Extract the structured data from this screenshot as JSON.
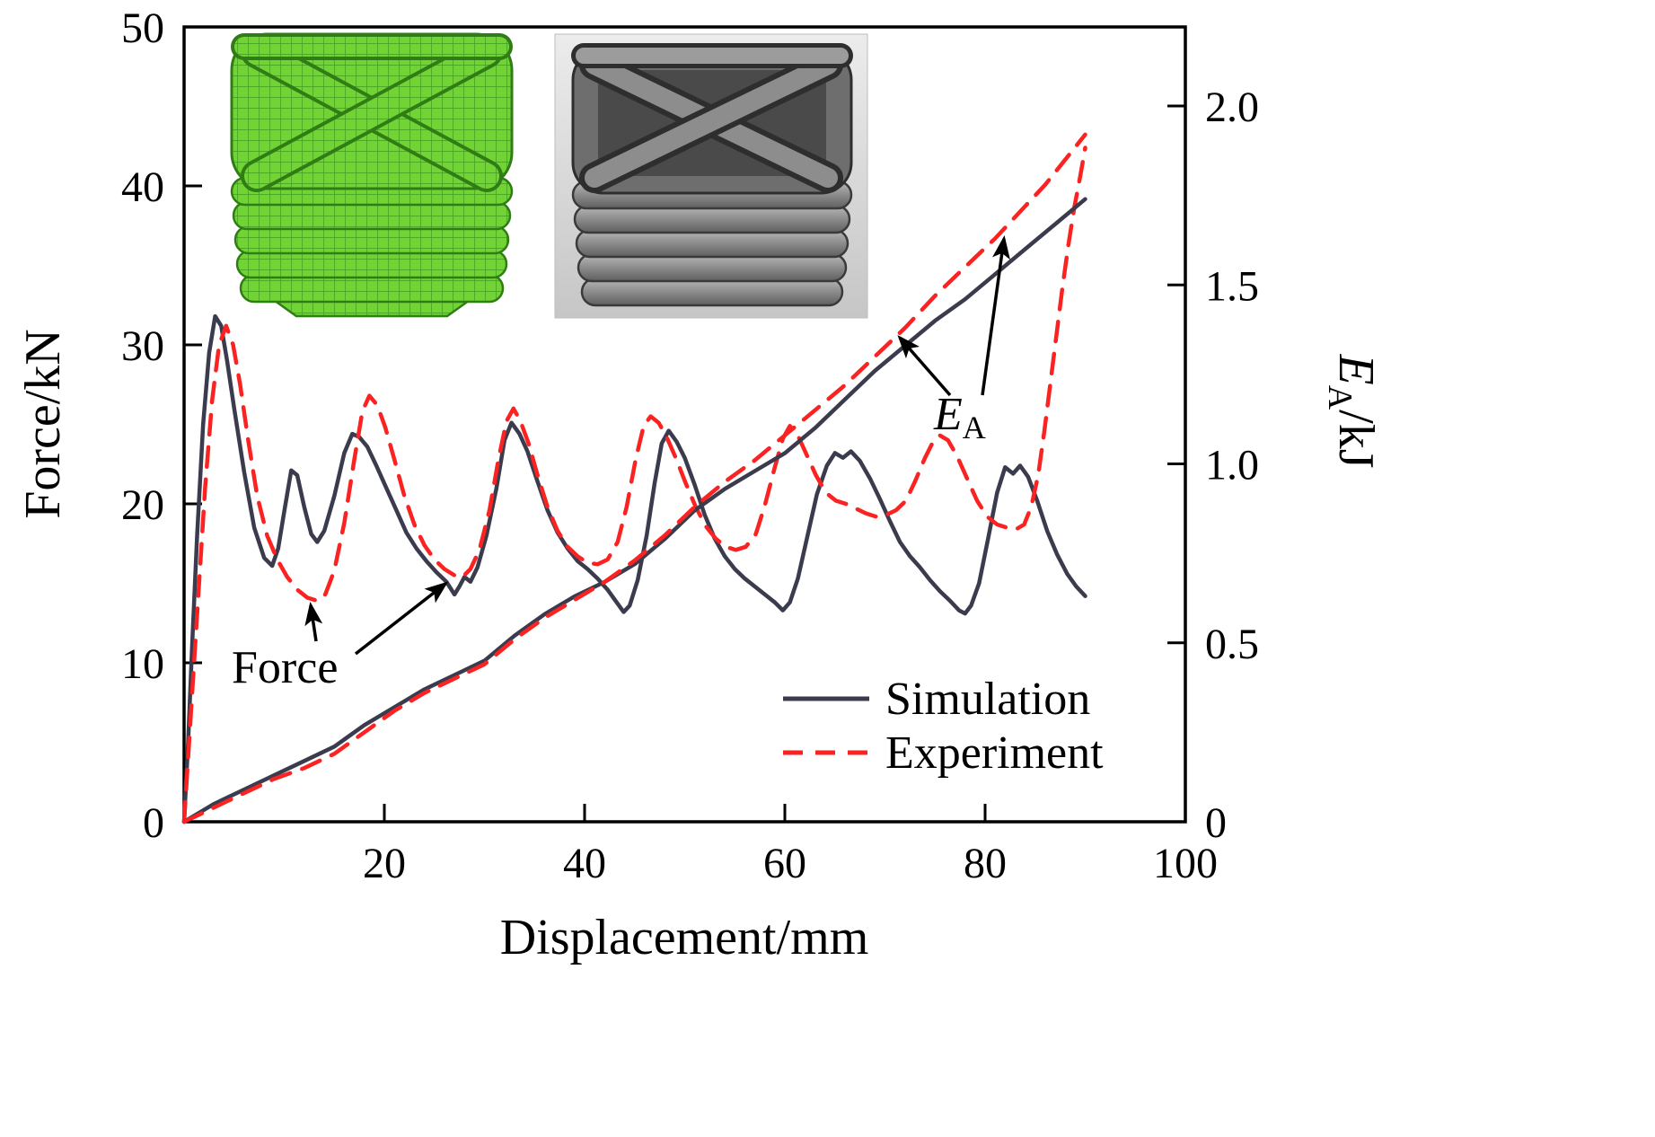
{
  "figure": {
    "xlabel": "Displacement/mm",
    "ylabel_left": "Force/kN",
    "ylabel_right": {
      "prefix": "E",
      "sub": "A",
      "suffix": "/kJ"
    },
    "legend": {
      "simulation": "Simulation",
      "experiment": "Experiment"
    },
    "annotations": {
      "force": "Force",
      "ea_prefix": "E",
      "ea_sub": "A"
    },
    "insets": [
      {
        "name": "simulation-mesh-inset",
        "kind": "fea-mesh-image"
      },
      {
        "name": "specimen-photo-inset",
        "kind": "experiment-photo-image"
      }
    ],
    "colors": {
      "simulation": "#3b3b4e",
      "experiment": "#fb2222",
      "mesh_green": "#72d434"
    }
  },
  "chart_data": {
    "type": "line",
    "title": "",
    "xlabel": "Displacement/mm",
    "ylabel_left": "Force/kN",
    "ylabel_right": "EA/kJ",
    "xlim": [
      0,
      100
    ],
    "ylim_left": [
      0,
      50
    ],
    "ylim_right": [
      0,
      2.221
    ],
    "grid": false,
    "legend_position": "inside lower right",
    "x_ticks": [
      {
        "v": 20,
        "label": "20"
      },
      {
        "v": 40,
        "label": "40"
      },
      {
        "v": 60,
        "label": "60"
      },
      {
        "v": 80,
        "label": "80"
      },
      {
        "v": 100,
        "label": "100"
      }
    ],
    "y_ticks_left": [
      {
        "v": 0,
        "label": "0"
      },
      {
        "v": 10,
        "label": "10"
      },
      {
        "v": 20,
        "label": "20"
      },
      {
        "v": 30,
        "label": "30"
      },
      {
        "v": 40,
        "label": "40"
      },
      {
        "v": 50,
        "label": "50"
      }
    ],
    "y_ticks_right": [
      {
        "v": 0,
        "label": "0"
      },
      {
        "v": 0.5,
        "label": "0.5"
      },
      {
        "v": 1,
        "label": "1.0"
      },
      {
        "v": 1.5,
        "label": "1.5"
      },
      {
        "v": 2,
        "label": "2.0"
      }
    ],
    "series": [
      {
        "name": "Simulation Force",
        "axis": "left",
        "color": "#3b3b4e",
        "dash": null,
        "width": 4.5,
        "points": [
          [
            0,
            0
          ],
          [
            0.4,
            5
          ],
          [
            0.8,
            11
          ],
          [
            1.3,
            18
          ],
          [
            1.9,
            25
          ],
          [
            2.5,
            29.5
          ],
          [
            3.1,
            31.8
          ],
          [
            3.7,
            31.2
          ],
          [
            4.3,
            29
          ],
          [
            5,
            26
          ],
          [
            6,
            22
          ],
          [
            7,
            18.5
          ],
          [
            8,
            16.6
          ],
          [
            8.8,
            16.1
          ],
          [
            9.4,
            17.2
          ],
          [
            10,
            19.5
          ],
          [
            10.7,
            22.1
          ],
          [
            11.3,
            21.8
          ],
          [
            12,
            19.8
          ],
          [
            12.7,
            18.1
          ],
          [
            13.3,
            17.6
          ],
          [
            14,
            18.3
          ],
          [
            15,
            20.5
          ],
          [
            16,
            23.2
          ],
          [
            16.8,
            24.4
          ],
          [
            17.5,
            24.2
          ],
          [
            18.3,
            23.6
          ],
          [
            19.2,
            22.4
          ],
          [
            20.2,
            21
          ],
          [
            21.2,
            19.6
          ],
          [
            22.2,
            18.2
          ],
          [
            23.2,
            17.2
          ],
          [
            24.2,
            16.4
          ],
          [
            25.2,
            15.7
          ],
          [
            26.2,
            15.1
          ],
          [
            27,
            14.3
          ],
          [
            27.5,
            14.8
          ],
          [
            28,
            15.4
          ],
          [
            28.6,
            15.1
          ],
          [
            29.3,
            16
          ],
          [
            30.2,
            18
          ],
          [
            31.2,
            21
          ],
          [
            32,
            24
          ],
          [
            32.7,
            25.1
          ],
          [
            33.5,
            24.4
          ],
          [
            34.3,
            23.3
          ],
          [
            35.3,
            21.4
          ],
          [
            36.3,
            19.6
          ],
          [
            37.3,
            18.2
          ],
          [
            38.3,
            17.2
          ],
          [
            39.3,
            16.4
          ],
          [
            40.3,
            15.9
          ],
          [
            41.3,
            15.3
          ],
          [
            42.3,
            14.6
          ],
          [
            43.2,
            13.8
          ],
          [
            43.9,
            13.2
          ],
          [
            44.5,
            13.6
          ],
          [
            45.3,
            15.2
          ],
          [
            46.2,
            18
          ],
          [
            47,
            21.3
          ],
          [
            47.7,
            23.8
          ],
          [
            48.4,
            24.6
          ],
          [
            49.2,
            23.9
          ],
          [
            50,
            22.9
          ],
          [
            51,
            21.2
          ],
          [
            52,
            19.3
          ],
          [
            53,
            17.8
          ],
          [
            54,
            16.7
          ],
          [
            55,
            15.9
          ],
          [
            56,
            15.3
          ],
          [
            57,
            14.8
          ],
          [
            58,
            14.3
          ],
          [
            59,
            13.8
          ],
          [
            59.8,
            13.3
          ],
          [
            60.5,
            13.8
          ],
          [
            61.3,
            15.3
          ],
          [
            62.2,
            17.8
          ],
          [
            63.2,
            20.6
          ],
          [
            64.2,
            22.4
          ],
          [
            65,
            23.2
          ],
          [
            65.8,
            22.9
          ],
          [
            66.6,
            23.3
          ],
          [
            67.5,
            22.7
          ],
          [
            68.5,
            21.6
          ],
          [
            69.5,
            20.3
          ],
          [
            70.5,
            18.9
          ],
          [
            71.5,
            17.6
          ],
          [
            72.5,
            16.7
          ],
          [
            73.5,
            16
          ],
          [
            74.5,
            15.2
          ],
          [
            75.5,
            14.5
          ],
          [
            76.5,
            13.9
          ],
          [
            77.4,
            13.3
          ],
          [
            78,
            13.1
          ],
          [
            78.6,
            13.6
          ],
          [
            79.4,
            15
          ],
          [
            80.3,
            17.8
          ],
          [
            81.2,
            20.7
          ],
          [
            82,
            22.3
          ],
          [
            82.8,
            21.9
          ],
          [
            83.5,
            22.4
          ],
          [
            84.3,
            21.7
          ],
          [
            85.2,
            20.2
          ],
          [
            86.2,
            18.3
          ],
          [
            87.2,
            16.8
          ],
          [
            88.2,
            15.6
          ],
          [
            89.1,
            14.8
          ],
          [
            90,
            14.2
          ]
        ]
      },
      {
        "name": "Experiment Force",
        "axis": "left",
        "color": "#fb2222",
        "dash": "22 14",
        "width": 4.5,
        "points": [
          [
            0,
            0
          ],
          [
            0.4,
            4
          ],
          [
            0.9,
            9
          ],
          [
            1.5,
            15
          ],
          [
            2.1,
            21
          ],
          [
            2.8,
            26.5
          ],
          [
            3.5,
            30
          ],
          [
            4.2,
            31.2
          ],
          [
            4.9,
            30
          ],
          [
            5.6,
            27.5
          ],
          [
            6.4,
            24
          ],
          [
            7.3,
            20.5
          ],
          [
            8.3,
            18
          ],
          [
            9.3,
            16.5
          ],
          [
            10.3,
            15.4
          ],
          [
            11.3,
            14.6
          ],
          [
            12.3,
            14.1
          ],
          [
            13.3,
            13.9
          ],
          [
            14.1,
            14.3
          ],
          [
            15,
            15.8
          ],
          [
            16,
            18.8
          ],
          [
            17,
            22.8
          ],
          [
            17.8,
            25.8
          ],
          [
            18.5,
            26.8
          ],
          [
            19.3,
            26.2
          ],
          [
            20.1,
            24.8
          ],
          [
            21,
            22.8
          ],
          [
            22,
            20.5
          ],
          [
            23,
            18.7
          ],
          [
            24,
            17.4
          ],
          [
            25,
            16.5
          ],
          [
            26,
            15.9
          ],
          [
            27,
            15.5
          ],
          [
            27.8,
            15.4
          ],
          [
            28.6,
            15.9
          ],
          [
            29.5,
            17.1
          ],
          [
            30.5,
            19.6
          ],
          [
            31.4,
            22.8
          ],
          [
            32.2,
            25.2
          ],
          [
            32.9,
            26
          ],
          [
            33.6,
            25.2
          ],
          [
            34.4,
            23.8
          ],
          [
            35.3,
            21.8
          ],
          [
            36.3,
            19.8
          ],
          [
            37.3,
            18.3
          ],
          [
            38.3,
            17.3
          ],
          [
            39.3,
            16.7
          ],
          [
            40.3,
            16.3
          ],
          [
            41.3,
            16.2
          ],
          [
            42.3,
            16.5
          ],
          [
            43.3,
            17.6
          ],
          [
            44.2,
            19.8
          ],
          [
            45.1,
            22.8
          ],
          [
            45.9,
            24.9
          ],
          [
            46.6,
            25.5
          ],
          [
            47.4,
            25.1
          ],
          [
            48.2,
            24.2
          ],
          [
            49.1,
            22.9
          ],
          [
            50.1,
            21.3
          ],
          [
            51.1,
            19.8
          ],
          [
            52.1,
            18.6
          ],
          [
            53.1,
            17.8
          ],
          [
            54.1,
            17.3
          ],
          [
            55.1,
            17.1
          ],
          [
            56.1,
            17.3
          ],
          [
            57.1,
            18.1
          ],
          [
            58,
            19.9
          ],
          [
            59,
            22.3
          ],
          [
            59.8,
            24.1
          ],
          [
            60.5,
            24.9
          ],
          [
            61.3,
            24.3
          ],
          [
            62.1,
            23.2
          ],
          [
            63.1,
            21.8
          ],
          [
            64.1,
            20.7
          ],
          [
            65.1,
            20.2
          ],
          [
            66.1,
            20
          ],
          [
            67.1,
            19.7
          ],
          [
            68.1,
            19.4
          ],
          [
            69.1,
            19.2
          ],
          [
            70.1,
            19.3
          ],
          [
            71.1,
            19.6
          ],
          [
            72.1,
            20.2
          ],
          [
            73,
            21.4
          ],
          [
            74,
            22.9
          ],
          [
            74.8,
            23.9
          ],
          [
            75.5,
            24.3
          ],
          [
            76.3,
            24
          ],
          [
            77.2,
            23
          ],
          [
            78.2,
            21.6
          ],
          [
            79.2,
            20.2
          ],
          [
            80.2,
            19.2
          ],
          [
            81.2,
            18.7
          ],
          [
            82.2,
            18.5
          ],
          [
            83.1,
            18.4
          ],
          [
            83.9,
            18.7
          ],
          [
            84.6,
            19.8
          ],
          [
            85.3,
            21.8
          ],
          [
            85.9,
            24.5
          ],
          [
            86.5,
            27.5
          ],
          [
            87.1,
            30.5
          ],
          [
            87.7,
            33.5
          ],
          [
            88.3,
            36.2
          ],
          [
            88.9,
            38.6
          ],
          [
            89.5,
            40.6
          ],
          [
            90,
            42.4
          ]
        ]
      },
      {
        "name": "Simulation EA",
        "axis": "right",
        "color": "#3b3b4e",
        "dash": null,
        "width": 4.5,
        "points": [
          [
            0,
            0
          ],
          [
            3,
            0.05
          ],
          [
            6,
            0.09
          ],
          [
            9,
            0.13
          ],
          [
            12,
            0.17
          ],
          [
            15,
            0.21
          ],
          [
            18,
            0.27
          ],
          [
            21,
            0.32
          ],
          [
            24,
            0.37
          ],
          [
            27,
            0.41
          ],
          [
            30,
            0.45
          ],
          [
            33,
            0.52
          ],
          [
            36,
            0.58
          ],
          [
            39,
            0.63
          ],
          [
            42,
            0.67
          ],
          [
            45,
            0.72
          ],
          [
            48,
            0.79
          ],
          [
            51,
            0.87
          ],
          [
            54,
            0.93
          ],
          [
            57,
            0.98
          ],
          [
            60,
            1.03
          ],
          [
            63,
            1.1
          ],
          [
            66,
            1.18
          ],
          [
            69,
            1.26
          ],
          [
            72,
            1.33
          ],
          [
            75,
            1.4
          ],
          [
            78,
            1.46
          ],
          [
            81,
            1.53
          ],
          [
            84,
            1.6
          ],
          [
            87,
            1.67
          ],
          [
            90,
            1.74
          ]
        ]
      },
      {
        "name": "Experiment EA",
        "axis": "right",
        "color": "#fb2222",
        "dash": "22 14",
        "width": 4.5,
        "points": [
          [
            0,
            0
          ],
          [
            3,
            0.04
          ],
          [
            6,
            0.08
          ],
          [
            9,
            0.12
          ],
          [
            12,
            0.15
          ],
          [
            15,
            0.19
          ],
          [
            18,
            0.25
          ],
          [
            21,
            0.31
          ],
          [
            24,
            0.36
          ],
          [
            27,
            0.4
          ],
          [
            30,
            0.44
          ],
          [
            33,
            0.51
          ],
          [
            36,
            0.57
          ],
          [
            39,
            0.62
          ],
          [
            42,
            0.67
          ],
          [
            45,
            0.73
          ],
          [
            48,
            0.8
          ],
          [
            51,
            0.88
          ],
          [
            54,
            0.95
          ],
          [
            57,
            1.01
          ],
          [
            60,
            1.08
          ],
          [
            63,
            1.15
          ],
          [
            66,
            1.22
          ],
          [
            69,
            1.3
          ],
          [
            72,
            1.38
          ],
          [
            75,
            1.47
          ],
          [
            78,
            1.55
          ],
          [
            81,
            1.63
          ],
          [
            84,
            1.72
          ],
          [
            86,
            1.78
          ],
          [
            88,
            1.85
          ],
          [
            90,
            1.92
          ]
        ]
      }
    ]
  }
}
